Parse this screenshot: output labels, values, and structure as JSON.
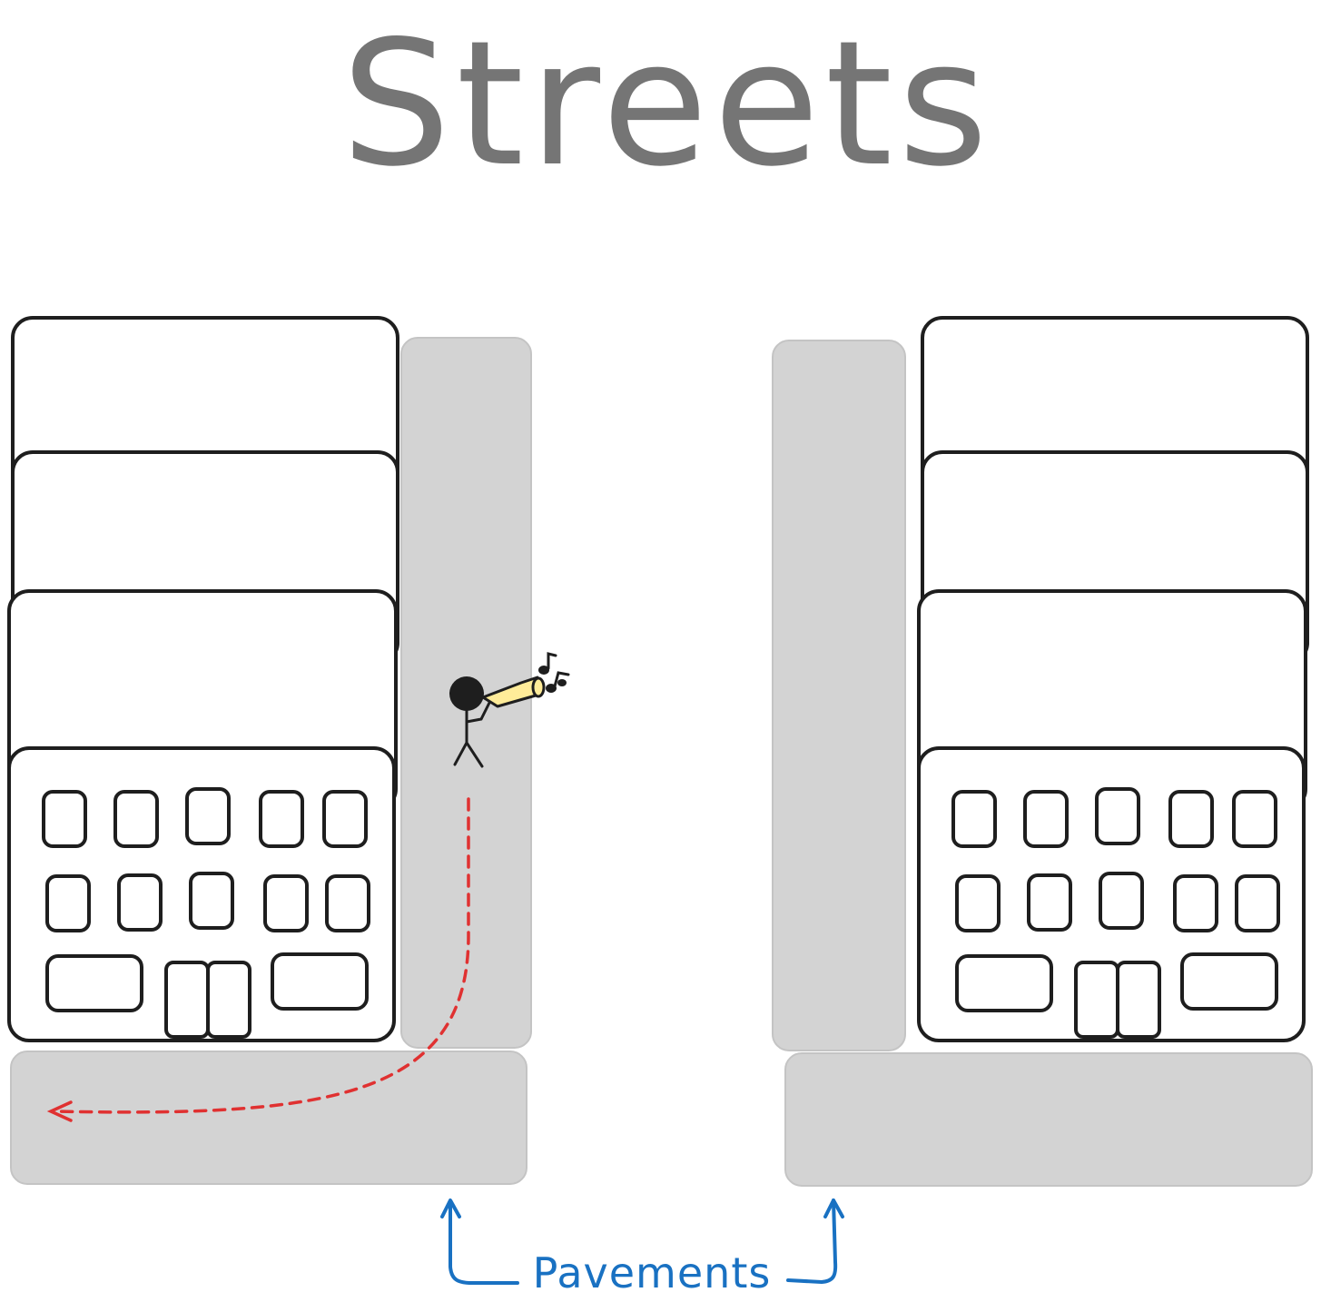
{
  "title": "Streets",
  "pavements_label": "Pavements",
  "colors": {
    "title": "#757575",
    "pavement": "#d3d3d3",
    "building_stroke": "#1e1e1e",
    "route": "#e03131",
    "annotation": "#1971c2",
    "trumpet": "#ffec99"
  },
  "scene": {
    "buildings": [
      "left-building",
      "right-building"
    ],
    "figure": "trumpet-player",
    "route_line": "red-dashed-route"
  }
}
